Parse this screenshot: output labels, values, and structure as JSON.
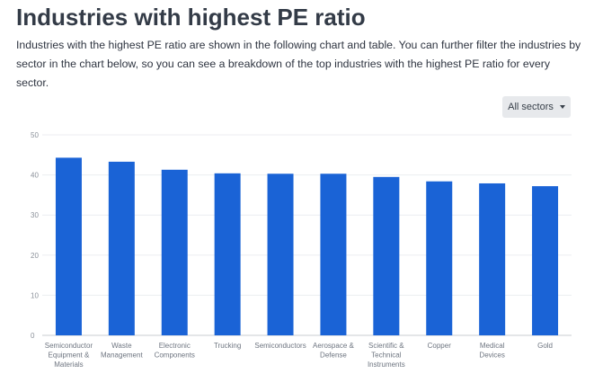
{
  "header": {
    "title": "Industries with highest PE ratio",
    "description": "Industries with the highest PE ratio are shown in the following chart and table. You can further filter the industries by sector in the chart below, so you can see a breakdown of the top industries with the highest PE ratio for every sector."
  },
  "filter": {
    "selected": "All sectors",
    "icon": "caret-down-icon"
  },
  "colors": {
    "bar": "#1a63d6",
    "grid": "#eceef1",
    "axis": "#c9ccd1"
  },
  "chart_data": {
    "type": "bar",
    "title": "",
    "xlabel": "",
    "ylabel": "",
    "ylim": [
      0,
      50
    ],
    "yticks": [
      0,
      10,
      20,
      30,
      40,
      50
    ],
    "grid": true,
    "categories": [
      [
        "Semiconductor",
        "Equipment &",
        "Materials"
      ],
      [
        "Waste",
        "Management"
      ],
      [
        "Electronic",
        "Components"
      ],
      [
        "Trucking"
      ],
      [
        "Semiconductors"
      ],
      [
        "Aerospace &",
        "Defense"
      ],
      [
        "Scientific &",
        "Technical",
        "Instruments"
      ],
      [
        "Copper"
      ],
      [
        "Medical",
        "Devices"
      ],
      [
        "Gold"
      ]
    ],
    "values": [
      44.3,
      43.3,
      41.3,
      40.4,
      40.3,
      40.3,
      39.5,
      38.4,
      37.9,
      37.2
    ]
  }
}
